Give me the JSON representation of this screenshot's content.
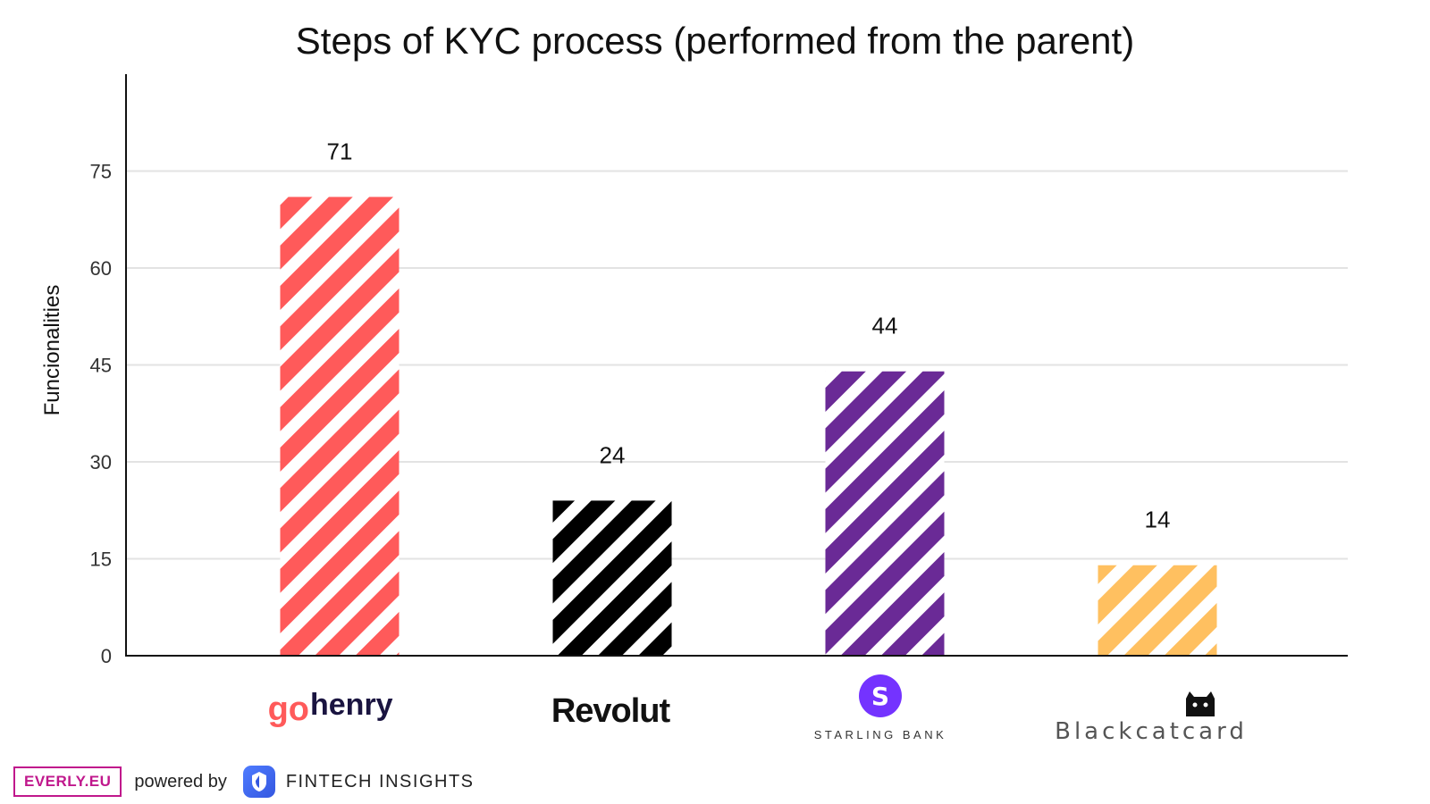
{
  "chart_data": {
    "type": "bar",
    "title": "Steps of KYC process (performed from the parent)",
    "xlabel": "",
    "ylabel": "Funcionalities",
    "ylim": [
      0,
      90
    ],
    "yticks": [
      0,
      15,
      30,
      45,
      60,
      75
    ],
    "grid": true,
    "categories": [
      "gohenry",
      "Revolut",
      "STARLING BANK",
      "Blackcatcard"
    ],
    "values": [
      71,
      24,
      44,
      14
    ],
    "colors": [
      "#ff5a5a",
      "#000000",
      "#6a2a96",
      "#ffc060"
    ]
  },
  "brands": {
    "gohenry_go": "go",
    "gohenry_henry": "henry",
    "gohenry_go_color": "#ff5a5a",
    "gohenry_henry_color": "#1a1440",
    "revolut_color": "#111111",
    "starling_color": "#7433ff",
    "blackcatcard_color": "#555555"
  },
  "footer": {
    "everly_logo": "EVERLY.EU",
    "powered_by": "powered by",
    "fintech_insights": "FINTECH INSIGHTS"
  }
}
